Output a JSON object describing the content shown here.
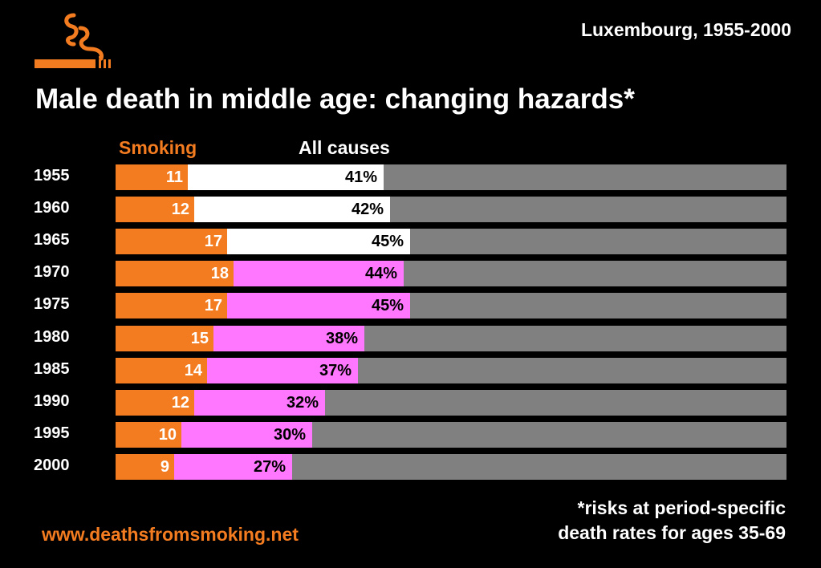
{
  "header": {
    "location": "Luxembourg, 1955-2000",
    "title": "Male death in middle age: changing hazards*"
  },
  "legend": {
    "smoking": "Smoking",
    "all_causes": "All causes"
  },
  "footnote": {
    "line1": "*risks at period-specific",
    "line2": "death rates for ages 35-69"
  },
  "website": "www.deathsfromsmoking.net",
  "colors": {
    "background": "#000000",
    "smoking": "#f47c20",
    "all_causes_early": "#ffffff",
    "all_causes_late": "#ff77ff",
    "track": "#808080"
  },
  "logo_icon": "smoking-cigarette-icon",
  "chart_data": {
    "type": "bar",
    "orientation": "horizontal",
    "title": "Male death in middle age: changing hazards*",
    "subtitle": "Luxembourg, 1955-2000",
    "categories": [
      "1955",
      "1960",
      "1965",
      "1970",
      "1975",
      "1980",
      "1985",
      "1990",
      "1995",
      "2000"
    ],
    "series": [
      {
        "name": "Smoking",
        "values": [
          11,
          12,
          17,
          18,
          17,
          15,
          14,
          12,
          10,
          9
        ]
      },
      {
        "name": "All causes",
        "values": [
          41,
          42,
          45,
          44,
          45,
          38,
          37,
          32,
          30,
          27
        ]
      }
    ],
    "value_labels_all": [
      "41%",
      "42%",
      "45%",
      "44%",
      "45%",
      "38%",
      "37%",
      "32%",
      "30%",
      "27%"
    ],
    "xlim": [
      0,
      100
    ],
    "legend_position": "top",
    "grid": false
  }
}
